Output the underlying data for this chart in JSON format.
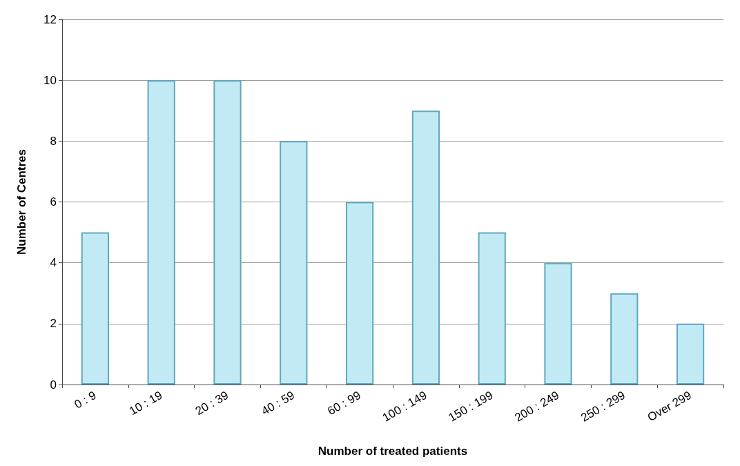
{
  "chart_data": {
    "type": "bar",
    "xlabel": "Number of treated patients",
    "ylabel": "Number of Centres",
    "categories": [
      "0 : 9",
      "10 : 19",
      "20 : 39",
      "40 : 59",
      "60 : 99",
      "100 : 149",
      "150 : 199",
      "200 : 249",
      "250 : 299",
      "Over 299"
    ],
    "values": [
      5,
      10,
      10,
      8,
      6,
      9,
      5,
      4,
      3,
      2
    ],
    "color": "#c2eaf5",
    "ylim": [
      0,
      12
    ],
    "yticks": [
      0,
      2,
      4,
      6,
      8,
      10,
      12
    ],
    "grid": "y"
  }
}
